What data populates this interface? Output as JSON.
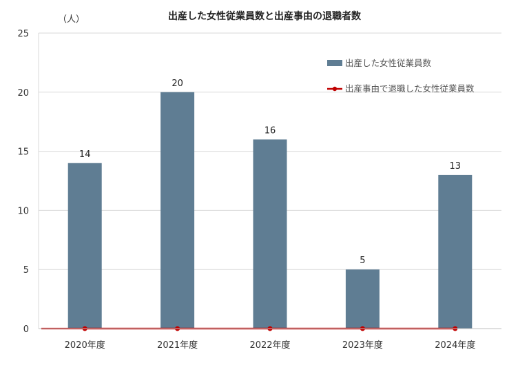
{
  "chart_data": {
    "type": "bar",
    "title": "出産した女性従業員数と出産事由の退職者数",
    "unit_label": "（人）",
    "categories": [
      "2020年度",
      "2021年度",
      "2022年度",
      "2023年度",
      "2024年度"
    ],
    "series": [
      {
        "name": "出産した女性従業員数",
        "type": "bar",
        "color": "#5f7d93",
        "values": [
          14,
          20,
          16,
          5,
          13
        ]
      },
      {
        "name": "出産事由で退職した女性従業員数",
        "type": "line",
        "color": "#c00000",
        "values": [
          0,
          0,
          0,
          0,
          0
        ]
      }
    ],
    "ylim": [
      0,
      25
    ],
    "yticks": [
      0,
      5,
      10,
      15,
      20,
      25
    ],
    "grid": true,
    "legend_position": "top-right",
    "data_labels": [
      "14",
      "20",
      "16",
      "5",
      "13"
    ]
  }
}
